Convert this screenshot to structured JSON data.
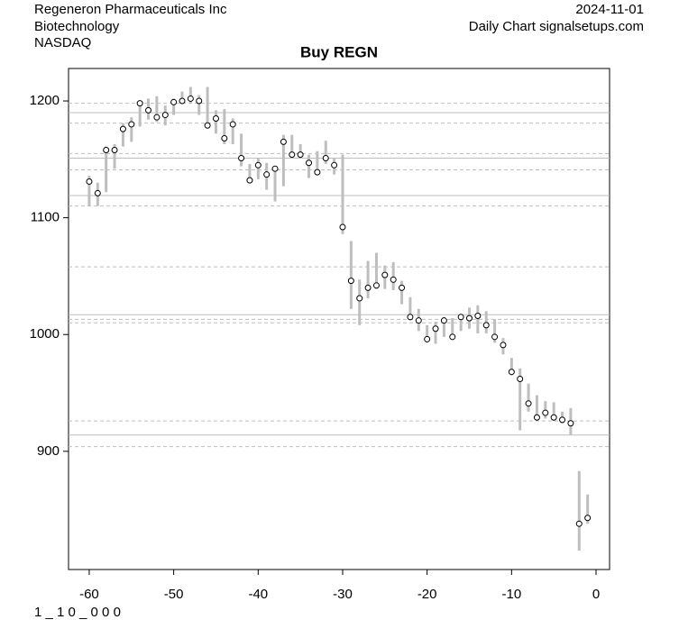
{
  "chart_data": {
    "type": "hilo",
    "title": "Buy REGN",
    "company": "Regeneron Pharmaceuticals Inc",
    "sector": "Biotechnology",
    "exchange": "NASDAQ",
    "date": "2024-11-01",
    "source": "Daily Chart signalsetups.com",
    "footer": "1 _ 1 0 _ 0 0 0",
    "x": [
      -60,
      -59,
      -58,
      -57,
      -56,
      -55,
      -54,
      -53,
      -52,
      -51,
      -50,
      -49,
      -48,
      -47,
      -46,
      -45,
      -44,
      -43,
      -42,
      -41,
      -40,
      -39,
      -38,
      -37,
      -36,
      -35,
      -34,
      -33,
      -32,
      -31,
      -30,
      -29,
      -28,
      -27,
      -26,
      -25,
      -24,
      -23,
      -22,
      -21,
      -20,
      -19,
      -18,
      -17,
      -16,
      -15,
      -14,
      -13,
      -12,
      -11,
      -10,
      -9,
      -8,
      -7,
      -6,
      -5,
      -4,
      -3,
      -2,
      -1
    ],
    "close": [
      1131,
      1121,
      1158,
      1158,
      1176,
      1180,
      1198,
      1192,
      1186,
      1188,
      1199,
      1200,
      1202,
      1200,
      1179,
      1185,
      1168,
      1180,
      1151,
      1132,
      1145,
      1137,
      1142,
      1165,
      1154,
      1154,
      1147,
      1139,
      1151,
      1145,
      1092,
      1046,
      1031,
      1040,
      1042,
      1051,
      1047,
      1040,
      1015,
      1012,
      996,
      1005,
      1012,
      998,
      1015,
      1014,
      1016,
      1008,
      998,
      991,
      968,
      962,
      941,
      929,
      933,
      929,
      927,
      924,
      838,
      843
    ],
    "high": [
      1136,
      1130,
      1161,
      1163,
      1181,
      1186,
      1200,
      1202,
      1204,
      1196,
      1202,
      1208,
      1212,
      1205,
      1212,
      1192,
      1193,
      1185,
      1172,
      1146,
      1151,
      1147,
      1144,
      1171,
      1171,
      1163,
      1154,
      1157,
      1166,
      1151,
      1154,
      1080,
      1047,
      1063,
      1070,
      1059,
      1062,
      1046,
      1032,
      1022,
      1008,
      1011,
      1015,
      1014,
      1017,
      1023,
      1025,
      1020,
      1013,
      997,
      980,
      971,
      958,
      948,
      943,
      942,
      934,
      937,
      883,
      863
    ],
    "low": [
      1110,
      1110,
      1122,
      1142,
      1161,
      1165,
      1178,
      1184,
      1182,
      1179,
      1188,
      1198,
      1198,
      1188,
      1178,
      1172,
      1163,
      1163,
      1144,
      1131,
      1133,
      1124,
      1114,
      1127,
      1151,
      1152,
      1134,
      1137,
      1146,
      1137,
      1086,
      1022,
      1008,
      1031,
      1039,
      1039,
      1038,
      1026,
      1012,
      1003,
      993,
      992,
      998,
      996,
      1003,
      1005,
      1001,
      1001,
      993,
      983,
      965,
      918,
      934,
      926,
      928,
      926,
      924,
      914,
      815,
      838
    ],
    "bar_color": "#bebebe",
    "solid_lines": [
      1190,
      1151,
      1119,
      1017,
      914
    ],
    "dashed_lines": [
      1198,
      1181,
      1155,
      1141,
      1110,
      1058,
      1013,
      1010,
      926,
      904
    ],
    "line_color": "#bebebe",
    "xlim": [
      -62.45,
      1.6
    ],
    "ylim": [
      798.8,
      1227.8
    ],
    "xticks": [
      -60,
      -50,
      -40,
      -30,
      -20,
      -10,
      0
    ],
    "yticks": [
      900,
      1000,
      1100,
      1200
    ]
  }
}
